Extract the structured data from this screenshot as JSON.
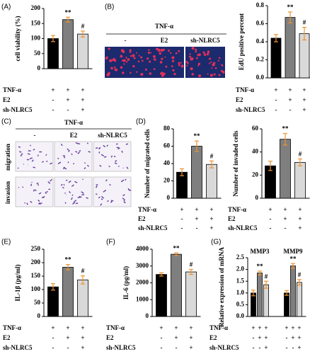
{
  "chart_data": [
    {
      "type": "bar",
      "panel": "(A)",
      "ylabel": "cell viability (%)",
      "values": [
        100,
        163,
        115
      ],
      "errors": [
        10,
        8,
        10
      ],
      "annotations": [
        null,
        "**",
        "#"
      ],
      "colors": [
        "#000000",
        "#7f7f7f",
        "#d9d9d9"
      ],
      "error_color": "#f0922b",
      "ylim": [
        0,
        200
      ],
      "yticks": [
        0,
        50,
        100,
        150,
        200
      ],
      "conditions": [
        {
          "name": "TNF-α",
          "signs": [
            "+",
            "+",
            "+"
          ]
        },
        {
          "name": "E2",
          "signs": [
            "-",
            "+",
            "+"
          ]
        },
        {
          "name": "sh-NLRC5",
          "signs": [
            "-",
            "-",
            "+"
          ]
        }
      ]
    },
    {
      "type": "bar",
      "ylabel": "EdU positive percent",
      "values": [
        0.44,
        0.67,
        0.49
      ],
      "errors": [
        0.04,
        0.06,
        0.07
      ],
      "annotations": [
        null,
        "**",
        "#"
      ],
      "colors": [
        "#000000",
        "#7f7f7f",
        "#d9d9d9"
      ],
      "error_color": "#f0922b",
      "ylim": [
        0,
        0.8
      ],
      "yticks": [
        {
          "value": 0,
          "label": "0.0"
        },
        0.2,
        0.4,
        0.6,
        0.8
      ],
      "conditions": [
        {
          "name": "TNF-α",
          "signs": [
            "+",
            "+",
            "+"
          ]
        },
        {
          "name": "E2",
          "signs": [
            "-",
            "+",
            "+"
          ]
        },
        {
          "name": "sh-NLRC5",
          "signs": [
            "-",
            "-",
            "+"
          ]
        }
      ]
    },
    {
      "type": "bar",
      "panel": "(D)",
      "ylabel": "Number of migrated cells",
      "values": [
        30,
        60,
        39
      ],
      "errors": [
        4,
        6,
        4
      ],
      "annotations": [
        null,
        "**",
        "#"
      ],
      "colors": [
        "#000000",
        "#7f7f7f",
        "#d9d9d9"
      ],
      "error_color": "#f0922b",
      "ylim": [
        0,
        80
      ],
      "yticks": [
        0,
        20,
        40,
        60,
        80
      ],
      "conditions": [
        {
          "name": "TNF-α",
          "signs": [
            "+",
            "+",
            "+"
          ]
        },
        {
          "name": "E2",
          "signs": [
            "-",
            "+",
            "+"
          ]
        },
        {
          "name": "sh-NLRC5",
          "signs": [
            "-",
            "-",
            "+"
          ]
        }
      ]
    },
    {
      "type": "bar",
      "ylabel": "Number of invaded cells",
      "values": [
        28,
        51,
        31
      ],
      "errors": [
        4,
        5,
        3
      ],
      "annotations": [
        null,
        "**",
        "#"
      ],
      "colors": [
        "#000000",
        "#7f7f7f",
        "#d9d9d9"
      ],
      "error_color": "#f0922b",
      "ylim": [
        0,
        60
      ],
      "yticks": [
        0,
        20,
        40,
        60
      ],
      "conditions": [
        {
          "name": "TNF-α",
          "signs": [
            "+",
            "+",
            "+"
          ]
        },
        {
          "name": "E2",
          "signs": [
            "-",
            "+",
            "+"
          ]
        },
        {
          "name": "sh-NLRC5",
          "signs": [
            "-",
            "-",
            "+"
          ]
        }
      ]
    },
    {
      "type": "bar",
      "panel": "(E)",
      "ylabel": "IL-1β (pg/ml)",
      "values": [
        110,
        183,
        136
      ],
      "errors": [
        12,
        10,
        15
      ],
      "annotations": [
        null,
        "**",
        "#"
      ],
      "colors": [
        "#000000",
        "#7f7f7f",
        "#d9d9d9"
      ],
      "error_color": "#f0922b",
      "ylim": [
        0,
        250
      ],
      "yticks": [
        0,
        50,
        100,
        150,
        200,
        250
      ],
      "conditions": [
        {
          "name": "TNF-α",
          "signs": [
            "+",
            "+",
            "+"
          ]
        },
        {
          "name": "E2",
          "signs": [
            "-",
            "+",
            "+"
          ]
        },
        {
          "name": "sh-NLRC5",
          "signs": [
            "-",
            "-",
            "+"
          ]
        }
      ]
    },
    {
      "type": "bar",
      "panel": "(F)",
      "ylabel": "IL-6 (pg/ml)",
      "values": [
        2500,
        3700,
        2650
      ],
      "errors": [
        100,
        80,
        150
      ],
      "annotations": [
        null,
        "**",
        "#"
      ],
      "colors": [
        "#000000",
        "#7f7f7f",
        "#d9d9d9"
      ],
      "error_color": "#f0922b",
      "ylim": [
        0,
        4000
      ],
      "yticks": [
        0,
        1000,
        2000,
        3000,
        4000
      ],
      "conditions": [
        {
          "name": "TNF-α",
          "signs": [
            "+",
            "+",
            "+"
          ]
        },
        {
          "name": "E2",
          "signs": [
            "-",
            "+",
            "+"
          ]
        },
        {
          "name": "sh-NLRC5",
          "signs": [
            "-",
            "-",
            "+"
          ]
        }
      ]
    },
    {
      "type": "bar",
      "panel": "(G)",
      "ylabel": "Relative expression of mRNA",
      "groups": [
        "MMP3",
        "MMP9"
      ],
      "values": [
        1.0,
        1.85,
        1.35,
        1.0,
        2.15,
        1.45
      ],
      "errors": [
        0.12,
        0.08,
        0.15,
        0.1,
        0.1,
        0.12
      ],
      "annotations": [
        null,
        "**",
        "#",
        null,
        "**",
        "#"
      ],
      "colors": [
        "#000000",
        "#7f7f7f",
        "#d9d9d9",
        "#000000",
        "#7f7f7f",
        "#d9d9d9"
      ],
      "error_color": "#f0922b",
      "ylim": [
        0,
        2.5
      ],
      "yticks": [
        {
          "value": 0,
          "label": "0.0"
        },
        0.5,
        {
          "value": 1,
          "label": "1.0"
        },
        1.5,
        {
          "value": 2,
          "label": "2.0"
        },
        2.5
      ],
      "conditions": [
        {
          "name": "TNF-α",
          "signs": [
            "+",
            "+",
            "+",
            "+",
            "+",
            "+"
          ]
        },
        {
          "name": "E2",
          "signs": [
            "-",
            "+",
            "+",
            "-",
            "+",
            "+"
          ]
        },
        {
          "name": "sh-NLRC5",
          "signs": [
            "-",
            "-",
            "+",
            "-",
            "-",
            "+"
          ]
        }
      ]
    }
  ],
  "images": {
    "B": {
      "panel": "(B)",
      "title": "TNF-α",
      "columns": [
        "-",
        "E2",
        "sh-NLRC5"
      ]
    },
    "C": {
      "panel": "(C)",
      "title": "TNF-α",
      "columns": [
        "-",
        "E2",
        "sh-NLRC5"
      ],
      "rows": [
        "migration",
        "invasion"
      ]
    }
  }
}
